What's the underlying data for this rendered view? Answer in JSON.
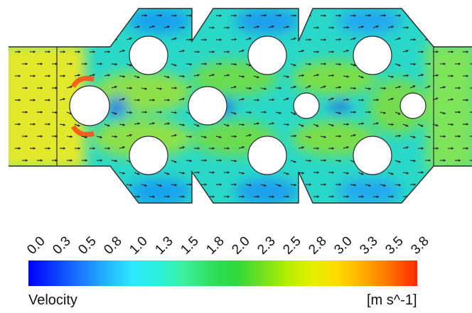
{
  "figure": {
    "colorbar": {
      "title": "Velocity",
      "unit": "[m s^-1]",
      "ticks": [
        "0.0",
        "0.3",
        "0.5",
        "0.8",
        "1.0",
        "1.3",
        "1.5",
        "1.8",
        "2.0",
        "2.3",
        "2.5",
        "2.8",
        "3.0",
        "3.3",
        "3.5",
        "3.8"
      ],
      "colors": [
        "#0000ff",
        "#0a3cff",
        "#1a78ff",
        "#22b4ff",
        "#2ce8ff",
        "#2af0d8",
        "#3cf0a0",
        "#30e060",
        "#2ed83a",
        "#6ee020",
        "#b4f000",
        "#e6f000",
        "#ffd800",
        "#ffa800",
        "#ff6e00",
        "#ff2a00"
      ]
    },
    "field_colors": {
      "inlet": "#e8ea2a",
      "jet": "#6ede3a",
      "mid": "#28d8c0",
      "low": "#18a8f0",
      "stagnant": "#1460e0",
      "hot": "#ff4a10"
    }
  }
}
